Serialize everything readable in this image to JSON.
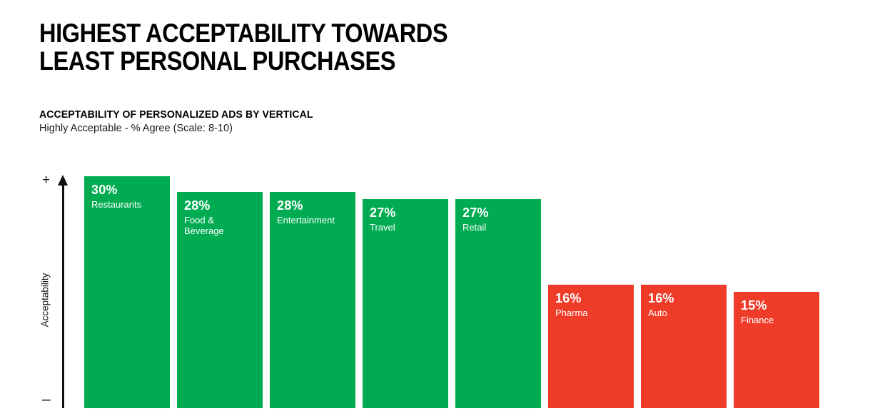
{
  "header": {
    "title_line1": "HIGHEST ACCEPTABILITY TOWARDS",
    "title_line2": "LEAST PERSONAL PURCHASES",
    "subtitle": "ACCEPTABILITY OF PERSONALIZED ADS BY VERTICAL",
    "caption": "Highly Acceptable - % Agree (Scale: 8-10)"
  },
  "axis": {
    "plus_label": "+",
    "minus_label": "–",
    "label": "Acceptability"
  },
  "chart_data": {
    "type": "bar",
    "title": "ACCEPTABILITY OF PERSONALIZED ADS BY VERTICAL",
    "subtitle": "Highly Acceptable - % Agree (Scale: 8-10)",
    "xlabel": "",
    "ylabel": "Acceptability",
    "ylim": [
      0,
      30
    ],
    "unit": "%",
    "grid": false,
    "legend": false,
    "categories": [
      "Restaurants",
      "Food & Beverage",
      "Entertainment",
      "Travel",
      "Retail",
      "Pharma",
      "Auto",
      "Finance"
    ],
    "values": [
      30,
      28,
      28,
      27,
      27,
      16,
      16,
      15
    ],
    "colors": {
      "high": "#00AB51",
      "low": "#EE3C28"
    },
    "bars": [
      {
        "label": "Restaurants",
        "value": 30,
        "value_label": "30%",
        "color_group": "high"
      },
      {
        "label": "Food & Beverage",
        "value": 28,
        "value_label": "28%",
        "color_group": "high"
      },
      {
        "label": "Entertainment",
        "value": 28,
        "value_label": "28%",
        "color_group": "high"
      },
      {
        "label": "Travel",
        "value": 27,
        "value_label": "27%",
        "color_group": "high"
      },
      {
        "label": "Retail",
        "value": 27,
        "value_label": "27%",
        "color_group": "high"
      },
      {
        "label": "Pharma",
        "value": 16,
        "value_label": "16%",
        "color_group": "low"
      },
      {
        "label": "Auto",
        "value": 16,
        "value_label": "16%",
        "color_group": "low"
      },
      {
        "label": "Finance",
        "value": 15,
        "value_label": "15%",
        "color_group": "low"
      }
    ]
  }
}
